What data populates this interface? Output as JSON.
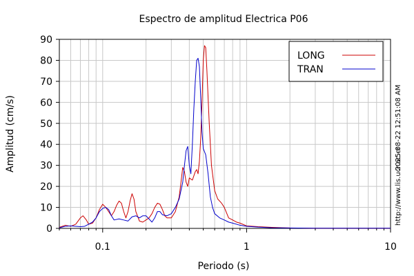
{
  "chart_data": {
    "type": "line",
    "title": "Espectro de amplitud Electrica P06",
    "xlabel": "Periodo (s)",
    "ylabel": "Amplitud (cm/s)",
    "xscale": "log",
    "xlim": [
      0.05,
      10
    ],
    "ylim": [
      0,
      90
    ],
    "x_ticks": [
      0.1,
      1,
      10
    ],
    "x_tick_labels": [
      "0.1",
      "1",
      "10"
    ],
    "y_ticks": [
      0,
      10,
      20,
      30,
      40,
      50,
      60,
      70,
      80,
      90
    ],
    "y_tick_labels": [
      "0",
      "10",
      "20",
      "30",
      "40",
      "50",
      "60",
      "70",
      "80",
      "90"
    ],
    "grid": true,
    "legend_position": "top-right",
    "series": [
      {
        "name": "LONG",
        "color": "#cc0000",
        "points": [
          [
            0.05,
            0.5
          ],
          [
            0.055,
            1.5
          ],
          [
            0.06,
            1
          ],
          [
            0.065,
            2
          ],
          [
            0.07,
            5
          ],
          [
            0.073,
            6
          ],
          [
            0.077,
            4
          ],
          [
            0.08,
            2
          ],
          [
            0.085,
            2.5
          ],
          [
            0.09,
            5
          ],
          [
            0.095,
            9
          ],
          [
            0.1,
            11.5
          ],
          [
            0.105,
            10
          ],
          [
            0.11,
            8
          ],
          [
            0.115,
            6
          ],
          [
            0.12,
            8
          ],
          [
            0.125,
            11
          ],
          [
            0.13,
            13
          ],
          [
            0.135,
            12
          ],
          [
            0.14,
            8
          ],
          [
            0.145,
            5
          ],
          [
            0.15,
            8
          ],
          [
            0.155,
            13
          ],
          [
            0.16,
            16.5
          ],
          [
            0.165,
            14
          ],
          [
            0.17,
            8
          ],
          [
            0.18,
            3.5
          ],
          [
            0.19,
            3
          ],
          [
            0.2,
            4
          ],
          [
            0.21,
            5
          ],
          [
            0.22,
            7
          ],
          [
            0.23,
            10
          ],
          [
            0.24,
            12
          ],
          [
            0.25,
            11.5
          ],
          [
            0.26,
            9
          ],
          [
            0.27,
            6
          ],
          [
            0.28,
            5
          ],
          [
            0.3,
            5
          ],
          [
            0.32,
            8
          ],
          [
            0.34,
            15
          ],
          [
            0.35,
            22
          ],
          [
            0.36,
            29
          ],
          [
            0.37,
            27
          ],
          [
            0.38,
            22
          ],
          [
            0.39,
            20
          ],
          [
            0.4,
            24
          ],
          [
            0.42,
            23
          ],
          [
            0.44,
            27
          ],
          [
            0.45,
            28
          ],
          [
            0.46,
            26
          ],
          [
            0.47,
            32
          ],
          [
            0.48,
            43
          ],
          [
            0.49,
            60
          ],
          [
            0.5,
            80
          ],
          [
            0.51,
            87
          ],
          [
            0.52,
            86
          ],
          [
            0.53,
            75
          ],
          [
            0.55,
            50
          ],
          [
            0.57,
            30
          ],
          [
            0.6,
            18
          ],
          [
            0.63,
            14
          ],
          [
            0.67,
            12
          ],
          [
            0.7,
            10
          ],
          [
            0.75,
            5
          ],
          [
            0.8,
            4
          ],
          [
            0.85,
            3
          ],
          [
            0.9,
            2.5
          ],
          [
            1,
            1.2
          ],
          [
            1.2,
            0.8
          ],
          [
            1.5,
            0.5
          ],
          [
            2,
            0.2
          ],
          [
            3,
            0.1
          ],
          [
            5,
            0.1
          ],
          [
            10,
            0.1
          ]
        ]
      },
      {
        "name": "TRAN",
        "color": "#0000cc",
        "points": [
          [
            0.05,
            0.3
          ],
          [
            0.055,
            1
          ],
          [
            0.06,
            1.2
          ],
          [
            0.065,
            1
          ],
          [
            0.07,
            0.8
          ],
          [
            0.075,
            1
          ],
          [
            0.08,
            2
          ],
          [
            0.085,
            3
          ],
          [
            0.09,
            5
          ],
          [
            0.095,
            8
          ],
          [
            0.1,
            9.5
          ],
          [
            0.105,
            10
          ],
          [
            0.11,
            9
          ],
          [
            0.115,
            6
          ],
          [
            0.12,
            4
          ],
          [
            0.13,
            4.5
          ],
          [
            0.14,
            4
          ],
          [
            0.15,
            3.5
          ],
          [
            0.16,
            5.5
          ],
          [
            0.17,
            6
          ],
          [
            0.18,
            5
          ],
          [
            0.19,
            6
          ],
          [
            0.2,
            6
          ],
          [
            0.21,
            4.5
          ],
          [
            0.22,
            3
          ],
          [
            0.23,
            5
          ],
          [
            0.24,
            8
          ],
          [
            0.25,
            8
          ],
          [
            0.26,
            6.5
          ],
          [
            0.28,
            6
          ],
          [
            0.3,
            7
          ],
          [
            0.32,
            10
          ],
          [
            0.34,
            14
          ],
          [
            0.36,
            22
          ],
          [
            0.37,
            30
          ],
          [
            0.38,
            37
          ],
          [
            0.39,
            39
          ],
          [
            0.4,
            30
          ],
          [
            0.41,
            26
          ],
          [
            0.42,
            40
          ],
          [
            0.43,
            57
          ],
          [
            0.44,
            70
          ],
          [
            0.45,
            80
          ],
          [
            0.46,
            81
          ],
          [
            0.47,
            77
          ],
          [
            0.48,
            62
          ],
          [
            0.49,
            46
          ],
          [
            0.5,
            38
          ],
          [
            0.52,
            35
          ],
          [
            0.54,
            26
          ],
          [
            0.56,
            15
          ],
          [
            0.58,
            10
          ],
          [
            0.6,
            7
          ],
          [
            0.65,
            5
          ],
          [
            0.7,
            4
          ],
          [
            0.75,
            3
          ],
          [
            0.8,
            2.5
          ],
          [
            0.9,
            1.5
          ],
          [
            1,
            1
          ],
          [
            1.2,
            0.6
          ],
          [
            1.5,
            0.3
          ],
          [
            2,
            0.2
          ],
          [
            3,
            0.1
          ],
          [
            5,
            0.1
          ],
          [
            10,
            0.1
          ]
        ]
      }
    ],
    "side_text_right": "2025-08-22 12:51:08 AM",
    "side_text_bottom": "http://www.lis.ucr.ac.cr"
  }
}
